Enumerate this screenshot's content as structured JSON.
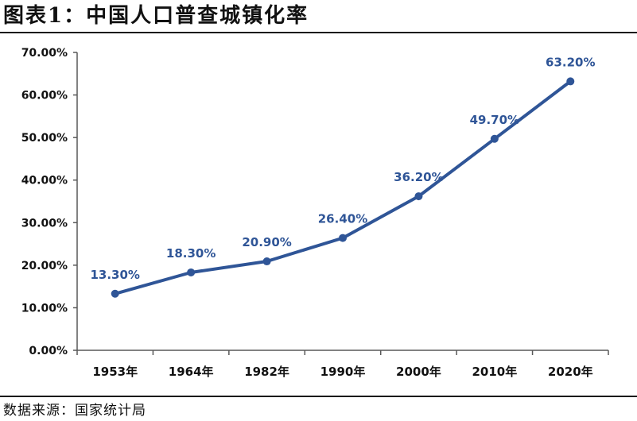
{
  "header": {
    "title": "图表1：中国人口普查城镇化率"
  },
  "footer": {
    "source": "数据来源：国家统计局"
  },
  "colors": {
    "series": "#2f5597",
    "axis": "#595959",
    "text": "#111111"
  },
  "chart_data": {
    "type": "line",
    "title": "",
    "xlabel": "",
    "ylabel": "",
    "categories": [
      "1953年",
      "1964年",
      "1982年",
      "1990年",
      "2000年",
      "2010年",
      "2020年"
    ],
    "series": [
      {
        "values": [
          13.3,
          18.3,
          20.9,
          26.4,
          36.2,
          49.7,
          63.2
        ],
        "labels": [
          "13.30%",
          "18.30%",
          "20.90%",
          "26.40%",
          "36.20%",
          "49.70%",
          "63.20%"
        ]
      }
    ],
    "ylim": [
      0,
      70
    ],
    "yticks": [
      0,
      10,
      20,
      30,
      40,
      50,
      60,
      70
    ],
    "ytick_labels": [
      "0.00%",
      "10.00%",
      "20.00%",
      "30.00%",
      "40.00%",
      "50.00%",
      "60.00%",
      "70.00%"
    ],
    "grid": false,
    "legend": "none"
  }
}
